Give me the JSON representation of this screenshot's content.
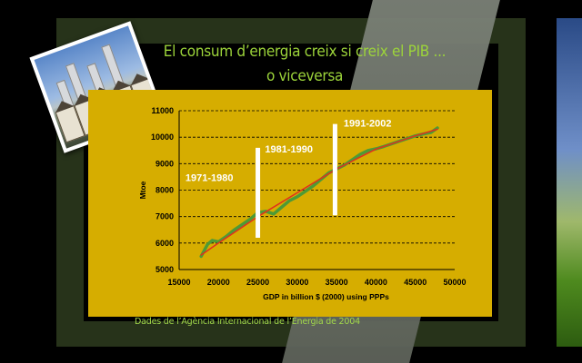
{
  "slide": {
    "title_line1": "El consum d’energia creix si creix el PIB ...",
    "title_line2": "o viceversa",
    "source": "Dades de l’Agència Internacional de l’Energia de 2004"
  },
  "colors": {
    "title": "#9cd43a",
    "panel": "#d6ad00",
    "series_green": "#4e9a36",
    "series_red": "#e0301e"
  },
  "chart_data": {
    "type": "line",
    "title": "",
    "xlabel": "GDP in billion $ (2000) using PPPs",
    "ylabel": "Mtoe",
    "xlim": [
      15000,
      50000
    ],
    "ylim": [
      5000,
      11000
    ],
    "xticks": [
      15000,
      20000,
      25000,
      30000,
      35000,
      40000,
      45000,
      50000
    ],
    "yticks": [
      5000,
      6000,
      7000,
      8000,
      9000,
      10000,
      11000
    ],
    "grid": "horizontal dashed",
    "series": [
      {
        "color": "#4e9a36",
        "x": [
          17800,
          18600,
          19200,
          20000,
          21000,
          22000,
          23000,
          24000,
          25000,
          26000,
          27000,
          28000,
          29000,
          30000,
          31000,
          32000,
          33000,
          34000,
          35000,
          36000,
          37000,
          38000,
          39000,
          40000,
          41000,
          42000,
          43000,
          44000,
          45000,
          46000,
          47000,
          47800
        ],
        "y": [
          5500,
          5950,
          6100,
          6050,
          6250,
          6500,
          6700,
          6900,
          7150,
          7200,
          7100,
          7350,
          7600,
          7750,
          7950,
          8150,
          8400,
          8650,
          8800,
          8950,
          9150,
          9350,
          9500,
          9560,
          9650,
          9750,
          9850,
          9950,
          10050,
          10120,
          10180,
          10350
        ]
      },
      {
        "color": "#e0301e",
        "x": [
          17800,
          20000,
          25000,
          30000,
          35000,
          40000,
          45000,
          47800
        ],
        "y": [
          5550,
          6000,
          7000,
          7900,
          8800,
          9550,
          10050,
          10300
        ]
      }
    ],
    "annotations": [
      {
        "text": "1971-1980",
        "x": 15800,
        "y": 8350
      },
      {
        "text": "1981-1990",
        "x": 25900,
        "y": 9420
      },
      {
        "text": "1991-2002",
        "x": 35900,
        "y": 10400
      }
    ],
    "dividers": [
      {
        "x": 25000,
        "y_from": 6200,
        "y_to": 9600
      },
      {
        "x": 34800,
        "y_from": 7050,
        "y_to": 10500
      }
    ]
  }
}
